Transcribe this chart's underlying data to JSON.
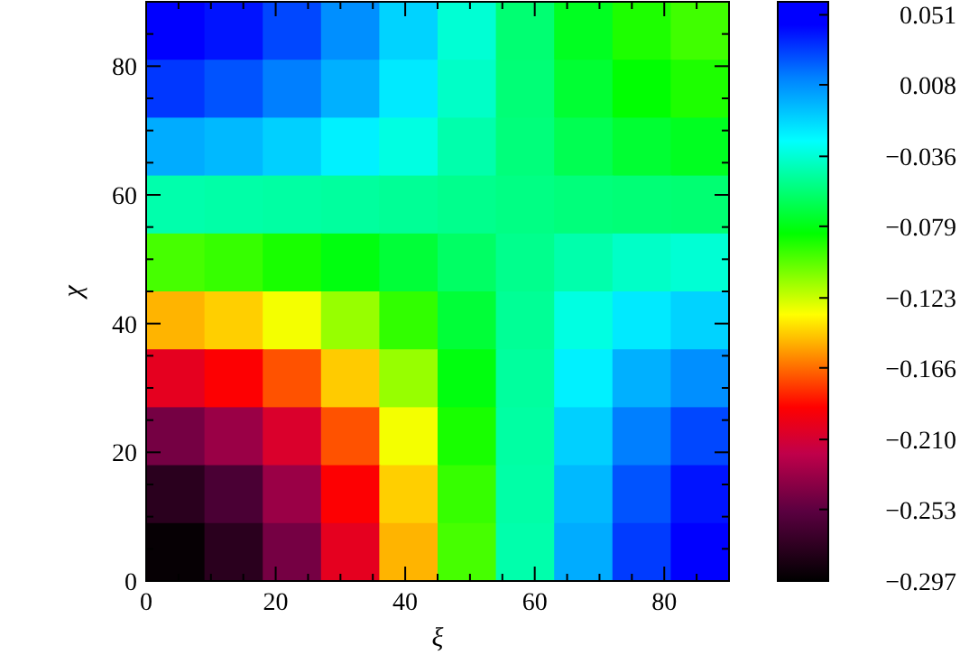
{
  "chart_data": {
    "type": "heatmap",
    "xlabel": "ξ",
    "ylabel": "χ",
    "x": [
      4.5,
      13.5,
      22.5,
      31.5,
      40.5,
      49.5,
      58.5,
      67.5,
      76.5,
      85.5
    ],
    "y": [
      85.5,
      76.5,
      67.5,
      58.5,
      49.5,
      40.5,
      31.5,
      22.5,
      13.5,
      4.5
    ],
    "xlim": [
      0,
      90
    ],
    "ylim": [
      0,
      90
    ],
    "xticks": [
      0,
      {
        "value": 5,
        "label": null
      },
      {
        "value": 10,
        "label": null
      },
      {
        "value": 15,
        "label": null
      },
      20,
      {
        "value": 25,
        "label": null
      },
      {
        "value": 30,
        "label": null
      },
      {
        "value": 35,
        "label": null
      },
      40,
      {
        "value": 45,
        "label": null
      },
      {
        "value": 50,
        "label": null
      },
      {
        "value": 55,
        "label": null
      },
      60,
      {
        "value": 65,
        "label": null
      },
      {
        "value": 70,
        "label": null
      },
      {
        "value": 75,
        "label": null
      },
      80,
      {
        "value": 85,
        "label": null
      }
    ],
    "yticks": [
      0,
      {
        "value": 5,
        "label": null
      },
      {
        "value": 10,
        "label": null
      },
      {
        "value": 15,
        "label": null
      },
      20,
      {
        "value": 25,
        "label": null
      },
      {
        "value": 30,
        "label": null
      },
      {
        "value": 35,
        "label": null
      },
      40,
      {
        "value": 45,
        "label": null
      },
      {
        "value": 50,
        "label": null
      },
      {
        "value": 55,
        "label": null
      },
      60,
      {
        "value": 65,
        "label": null
      },
      {
        "value": 70,
        "label": null
      },
      {
        "value": 75,
        "label": null
      },
      80,
      {
        "value": 85,
        "label": null
      }
    ],
    "cells": [
      [
        0.047,
        0.04,
        0.027,
        0.008,
        -0.013,
        -0.036,
        -0.058,
        -0.076,
        -0.089,
        -0.096
      ],
      [
        0.031,
        0.024,
        0.013,
        -0.002,
        -0.02,
        -0.039,
        -0.057,
        -0.072,
        -0.083,
        -0.089
      ],
      [
        -0.001,
        -0.005,
        -0.012,
        -0.022,
        -0.033,
        -0.045,
        -0.056,
        -0.065,
        -0.072,
        -0.076
      ],
      [
        -0.045,
        -0.046,
        -0.047,
        -0.048,
        -0.05,
        -0.052,
        -0.054,
        -0.056,
        -0.057,
        -0.058
      ],
      [
        -0.097,
        -0.094,
        -0.088,
        -0.08,
        -0.071,
        -0.061,
        -0.052,
        -0.045,
        -0.039,
        -0.036
      ],
      [
        -0.15,
        -0.144,
        -0.131,
        -0.113,
        -0.093,
        -0.071,
        -0.05,
        -0.033,
        -0.02,
        -0.013
      ],
      [
        -0.202,
        -0.191,
        -0.172,
        -0.145,
        -0.113,
        -0.08,
        -0.048,
        -0.022,
        -0.002,
        0.008
      ],
      [
        -0.245,
        -0.232,
        -0.207,
        -0.172,
        -0.131,
        -0.088,
        -0.047,
        -0.012,
        0.013,
        0.027
      ],
      [
        -0.277,
        -0.262,
        -0.232,
        -0.191,
        -0.144,
        -0.094,
        -0.046,
        -0.005,
        0.024,
        0.04
      ],
      [
        -0.294,
        -0.277,
        -0.245,
        -0.202,
        -0.15,
        -0.097,
        -0.045,
        -0.001,
        0.03,
        0.047
      ]
    ],
    "clim": [
      -0.297,
      0.059
    ],
    "cticks": [
      0.051,
      0.008,
      -0.036,
      -0.079,
      -0.123,
      -0.166,
      {
        "value": -0.21,
        "label": "−0.210"
      },
      -0.253,
      -0.297
    ]
  }
}
